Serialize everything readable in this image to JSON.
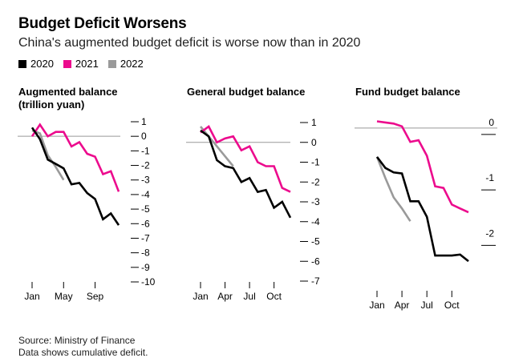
{
  "header": {
    "title": "Budget Deficit Worsens",
    "subtitle": "China's augmented budget deficit is worse now than in 2020"
  },
  "legend": [
    {
      "label": "2020",
      "color": "#000000"
    },
    {
      "label": "2021",
      "color": "#ec0b8d"
    },
    {
      "label": "2022",
      "color": "#9a9a9a"
    }
  ],
  "footer": {
    "source": "Source: Ministry of Finance",
    "note": "Data shows cumulative deficit."
  },
  "chart_data": [
    {
      "type": "line",
      "title": "Augmented balance (trillion yuan)",
      "x_ticks": [
        "Jan",
        "May",
        "Sep"
      ],
      "y_ticks": [
        1,
        0,
        -1,
        -2,
        -3,
        -4,
        -5,
        -6,
        -7,
        -8,
        -9,
        -10
      ],
      "ylim": [
        -10,
        1
      ],
      "months": [
        1,
        12
      ],
      "colors": {
        "2020": "#000000",
        "2021": "#ec0b8d",
        "2022": "#9a9a9a"
      },
      "series": [
        {
          "name": "2020",
          "x": [
            1,
            2,
            3,
            4,
            5,
            6,
            7,
            8,
            9,
            10,
            11,
            12
          ],
          "y": [
            0.6,
            -0.2,
            -1.6,
            -1.9,
            -2.2,
            -3.3,
            -3.2,
            -3.9,
            -4.3,
            -5.7,
            -5.3,
            -6.1
          ]
        },
        {
          "name": "2021",
          "x": [
            1,
            2,
            3,
            4,
            5,
            6,
            7,
            8,
            9,
            10,
            11,
            12
          ],
          "y": [
            0.0,
            0.8,
            0.0,
            0.3,
            0.3,
            -0.7,
            -0.4,
            -1.2,
            -1.4,
            -2.6,
            -2.4,
            -3.8
          ]
        },
        {
          "name": "2022",
          "x": [
            1,
            2,
            3,
            4,
            5
          ],
          "y": [
            0.4,
            0.2,
            -1.3,
            -2.1,
            -3.0
          ]
        }
      ]
    },
    {
      "type": "line",
      "title": "General budget balance",
      "x_ticks": [
        "Jan",
        "Apr",
        "Jul",
        "Oct"
      ],
      "y_ticks": [
        1,
        0,
        -1,
        -2,
        -3,
        -4,
        -5,
        -6,
        -7
      ],
      "ylim": [
        -7,
        1
      ],
      "months": [
        1,
        12
      ],
      "colors": {
        "2020": "#000000",
        "2021": "#ec0b8d",
        "2022": "#9a9a9a"
      },
      "series": [
        {
          "name": "2020",
          "x": [
            1,
            2,
            3,
            4,
            5,
            6,
            7,
            8,
            9,
            10,
            11,
            12
          ],
          "y": [
            0.6,
            0.3,
            -0.9,
            -1.2,
            -1.3,
            -2.0,
            -1.8,
            -2.5,
            -2.4,
            -3.3,
            -3.0,
            -3.8
          ]
        },
        {
          "name": "2021",
          "x": [
            1,
            2,
            3,
            4,
            5,
            6,
            7,
            8,
            9,
            10,
            11,
            12
          ],
          "y": [
            0.5,
            0.8,
            0.0,
            0.2,
            0.3,
            -0.4,
            -0.2,
            -1.0,
            -1.2,
            -1.2,
            -2.3,
            -2.5
          ]
        },
        {
          "name": "2022",
          "x": [
            1,
            2,
            3,
            4,
            5
          ],
          "y": [
            0.8,
            0.3,
            -0.2,
            -0.7,
            -1.2
          ]
        }
      ]
    },
    {
      "type": "line",
      "title": "Fund budget balance",
      "x_ticks": [
        "Jan",
        "Apr",
        "Jul",
        "Oct"
      ],
      "y_ticks": [
        0,
        -1,
        -2
      ],
      "ylim": [
        -2.5,
        0.2
      ],
      "months": [
        1,
        12
      ],
      "colors": {
        "2020": "#000000",
        "2021": "#ec0b8d",
        "2022": "#9a9a9a"
      },
      "series": [
        {
          "name": "2020",
          "x": [
            1,
            2,
            3,
            4,
            5,
            6,
            7,
            8,
            9,
            10,
            11,
            12
          ],
          "y": [
            -0.52,
            -0.72,
            -0.8,
            -0.82,
            -1.32,
            -1.32,
            -1.6,
            -2.3,
            -2.3,
            -2.3,
            -2.28,
            -2.4
          ]
        },
        {
          "name": "2021",
          "x": [
            1,
            2,
            3,
            4,
            5,
            6,
            7,
            8,
            9,
            10,
            11,
            12
          ],
          "y": [
            0.12,
            0.1,
            0.08,
            0.03,
            -0.25,
            -0.22,
            -0.5,
            -1.05,
            -1.08,
            -1.38,
            -1.45,
            -1.52
          ]
        },
        {
          "name": "2022",
          "x": [
            1,
            2,
            3,
            4,
            5
          ],
          "y": [
            -0.52,
            -0.9,
            -1.25,
            -1.45,
            -1.68
          ]
        }
      ]
    }
  ]
}
